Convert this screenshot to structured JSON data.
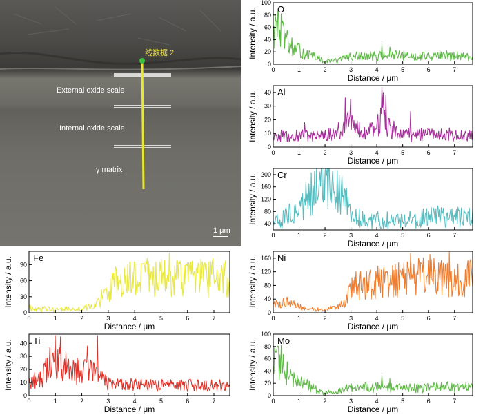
{
  "sem_image": {
    "line_label": "线数据 2",
    "layers": [
      "External oxide scale",
      "Internal oxide scale",
      "γ matrix"
    ],
    "scale_bar": "1 μm"
  },
  "chart_data": [
    {
      "id": "O",
      "type": "line",
      "title": "O",
      "color": "#5fb847",
      "xlabel": "Distance / μm",
      "ylabel": "Intensity / a.u.",
      "xlim": [
        0,
        7.7
      ],
      "ylim": [
        0,
        100
      ],
      "xticks": [
        0,
        1,
        2,
        3,
        4,
        5,
        6,
        7
      ],
      "yticks": [
        0,
        20,
        40,
        60,
        80,
        100
      ],
      "profile": [
        [
          0,
          50
        ],
        [
          0.15,
          58
        ],
        [
          0.3,
          52
        ],
        [
          0.5,
          35
        ],
        [
          0.8,
          25
        ],
        [
          1.2,
          18
        ],
        [
          1.6,
          12
        ],
        [
          1.9,
          6
        ],
        [
          2.2,
          5
        ],
        [
          2.6,
          8
        ],
        [
          2.9,
          12
        ],
        [
          3.5,
          13
        ],
        [
          4.5,
          14
        ],
        [
          5.5,
          13
        ],
        [
          6.5,
          14
        ],
        [
          7.7,
          13
        ]
      ],
      "peaks": [
        [
          0.2,
          80
        ],
        [
          0.3,
          82
        ],
        [
          0.1,
          70
        ],
        [
          0.55,
          55
        ],
        [
          4.2,
          33
        ],
        [
          4.5,
          28
        ]
      ]
    },
    {
      "id": "Al",
      "type": "line",
      "title": "Al",
      "color": "#a52f98",
      "xlabel": "Distance / μm",
      "ylabel": "Intensity / a.u.",
      "xlim": [
        0,
        7.7
      ],
      "ylim": [
        0,
        45
      ],
      "xticks": [
        0,
        1,
        2,
        3,
        4,
        5,
        6,
        7
      ],
      "yticks": [
        0,
        10,
        20,
        30,
        40
      ],
      "profile": [
        [
          0,
          8
        ],
        [
          1,
          8
        ],
        [
          2,
          9
        ],
        [
          2.6,
          12
        ],
        [
          2.8,
          20
        ],
        [
          3.1,
          14
        ],
        [
          3.5,
          11
        ],
        [
          4.0,
          13
        ],
        [
          4.2,
          22
        ],
        [
          4.5,
          13
        ],
        [
          5.0,
          10
        ],
        [
          6,
          9
        ],
        [
          7.7,
          9
        ]
      ],
      "peaks": [
        [
          2.78,
          36
        ],
        [
          3.0,
          35
        ],
        [
          4.2,
          44
        ],
        [
          4.25,
          40
        ],
        [
          4.35,
          38
        ],
        [
          1.2,
          18
        ],
        [
          5.3,
          26
        ]
      ]
    },
    {
      "id": "Cr",
      "type": "line",
      "title": "Cr",
      "color": "#55bcc0",
      "xlabel": "Distance / μm",
      "ylabel": "Intensity / a.u.",
      "xlim": [
        0,
        7.7
      ],
      "ylim": [
        20,
        220
      ],
      "xticks": [
        0,
        1,
        2,
        3,
        4,
        5,
        6,
        7
      ],
      "yticks": [
        40,
        80,
        120,
        160,
        200
      ],
      "profile": [
        [
          0,
          45
        ],
        [
          0.5,
          60
        ],
        [
          1.0,
          95
        ],
        [
          1.5,
          140
        ],
        [
          2.0,
          170
        ],
        [
          2.4,
          175
        ],
        [
          2.6,
          150
        ],
        [
          2.8,
          110
        ],
        [
          3.0,
          70
        ],
        [
          3.5,
          55
        ],
        [
          4.0,
          50
        ],
        [
          5.0,
          55
        ],
        [
          6.0,
          60
        ],
        [
          6.5,
          62
        ],
        [
          7.0,
          62
        ],
        [
          7.7,
          60
        ]
      ],
      "peaks": [
        [
          1.6,
          210
        ],
        [
          2.3,
          210
        ],
        [
          2.0,
          215
        ]
      ]
    },
    {
      "id": "Fe",
      "type": "line",
      "title": "Fe",
      "color": "#e8e845",
      "xlabel": "Distance / μm",
      "ylabel": "Intensity / a.u.",
      "xlim": [
        0,
        7.6
      ],
      "ylim": [
        0,
        115
      ],
      "xticks": [
        0,
        1,
        2,
        3,
        4,
        5,
        6,
        7
      ],
      "yticks": [
        0,
        30,
        60,
        90
      ],
      "profile": [
        [
          0,
          8
        ],
        [
          1,
          7
        ],
        [
          2,
          7
        ],
        [
          2.5,
          15
        ],
        [
          2.9,
          35
        ],
        [
          3.2,
          55
        ],
        [
          3.6,
          60
        ],
        [
          4.5,
          65
        ],
        [
          5.5,
          65
        ],
        [
          6.5,
          65
        ],
        [
          7.6,
          65
        ]
      ],
      "peaks": [
        [
          5.3,
          112
        ],
        [
          3.8,
          95
        ],
        [
          6.5,
          100
        ]
      ]
    },
    {
      "id": "Ni",
      "type": "line",
      "title": "Ni",
      "color": "#ef7d2e",
      "xlabel": "Distance / μm",
      "ylabel": "Intensity / a.u.",
      "xlim": [
        0,
        7.7
      ],
      "ylim": [
        0,
        180
      ],
      "xticks": [
        0,
        1,
        2,
        3,
        4,
        5,
        6,
        7
      ],
      "yticks": [
        0,
        40,
        80,
        120,
        160
      ],
      "profile": [
        [
          0,
          30
        ],
        [
          0.5,
          28
        ],
        [
          1.0,
          18
        ],
        [
          1.5,
          10
        ],
        [
          2.0,
          8
        ],
        [
          2.4,
          15
        ],
        [
          2.8,
          30
        ],
        [
          3.0,
          70
        ],
        [
          3.5,
          85
        ],
        [
          4.0,
          90
        ],
        [
          5.0,
          100
        ],
        [
          6.0,
          110
        ],
        [
          7.0,
          100
        ],
        [
          7.7,
          105
        ]
      ],
      "peaks": [
        [
          5.3,
          175
        ],
        [
          6.8,
          178
        ],
        [
          4.1,
          130
        ]
      ]
    },
    {
      "id": "Ti",
      "type": "line",
      "title": "Ti",
      "color": "#e03228",
      "xlabel": "Distance / μm",
      "ylabel": "Intensity / a.u.",
      "xlim": [
        0,
        7.6
      ],
      "ylim": [
        0,
        47
      ],
      "xticks": [
        0,
        1,
        2,
        3,
        4,
        5,
        6,
        7
      ],
      "yticks": [
        0,
        10,
        20,
        30,
        40
      ],
      "profile": [
        [
          0,
          10
        ],
        [
          0.4,
          12
        ],
        [
          0.8,
          25
        ],
        [
          1.2,
          24
        ],
        [
          1.8,
          20
        ],
        [
          2.4,
          18
        ],
        [
          2.8,
          14
        ],
        [
          3.0,
          9
        ],
        [
          4,
          8
        ],
        [
          5,
          8
        ],
        [
          6,
          8
        ],
        [
          7,
          8
        ],
        [
          7.6,
          8
        ]
      ],
      "peaks": [
        [
          1.0,
          46
        ],
        [
          1.2,
          45
        ],
        [
          2.6,
          46
        ],
        [
          2.2,
          38
        ]
      ]
    },
    {
      "id": "Mo",
      "type": "line",
      "title": "Mo",
      "color": "#5fb847",
      "xlabel": "Distance / μm",
      "ylabel": "Intensity / a.u.",
      "xlim": [
        0,
        7.7
      ],
      "ylim": [
        0,
        100
      ],
      "xticks": [
        0,
        1,
        2,
        3,
        4,
        5,
        6,
        7
      ],
      "yticks": [
        0,
        20,
        40,
        60,
        80,
        100
      ],
      "profile": [
        [
          0,
          50
        ],
        [
          0.15,
          58
        ],
        [
          0.3,
          52
        ],
        [
          0.5,
          35
        ],
        [
          0.8,
          25
        ],
        [
          1.2,
          18
        ],
        [
          1.6,
          12
        ],
        [
          1.9,
          6
        ],
        [
          2.2,
          5
        ],
        [
          2.6,
          8
        ],
        [
          2.9,
          12
        ],
        [
          3.5,
          13
        ],
        [
          4.5,
          14
        ],
        [
          5.5,
          13
        ],
        [
          6.5,
          14
        ],
        [
          7.7,
          13
        ]
      ],
      "peaks": [
        [
          0.2,
          80
        ],
        [
          0.3,
          82
        ],
        [
          0.1,
          70
        ],
        [
          0.55,
          55
        ],
        [
          4.2,
          33
        ],
        [
          4.5,
          28
        ]
      ]
    }
  ]
}
